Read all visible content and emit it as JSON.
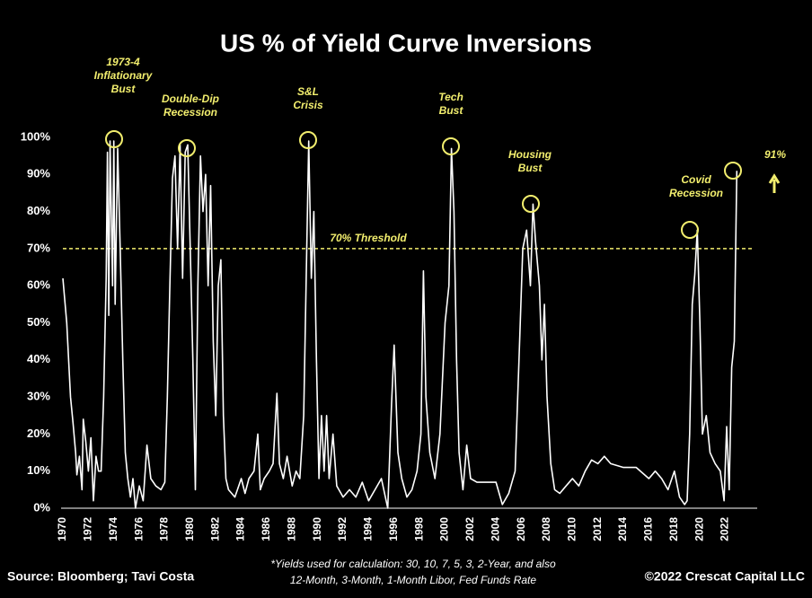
{
  "chart_data": {
    "type": "line",
    "title": "US % of Yield Curve Inversions",
    "x": [
      1970,
      1970.3,
      1970.6,
      1970.8,
      1971.0,
      1971.1,
      1971.3,
      1971.5,
      1971.6,
      1971.8,
      1972.0,
      1972.2,
      1972.4,
      1972.6,
      1972.8,
      1973.0,
      1973.2,
      1973.4,
      1973.5,
      1973.6,
      1973.7,
      1973.9,
      1974.0,
      1974.1,
      1974.3,
      1974.5,
      1974.7,
      1974.9,
      1975.1,
      1975.3,
      1975.5,
      1975.7,
      1976.0,
      1976.3,
      1976.6,
      1976.9,
      1977.3,
      1977.7,
      1978.0,
      1978.2,
      1978.4,
      1978.6,
      1978.8,
      1979.0,
      1979.2,
      1979.4,
      1979.6,
      1979.8,
      1980.0,
      1980.2,
      1980.4,
      1980.6,
      1980.8,
      1981.0,
      1981.2,
      1981.4,
      1981.6,
      1981.8,
      1982.0,
      1982.2,
      1982.4,
      1982.6,
      1982.8,
      1983.0,
      1983.5,
      1984.0,
      1984.3,
      1984.6,
      1985.0,
      1985.3,
      1985.5,
      1985.8,
      1986.2,
      1986.5,
      1986.8,
      1987.0,
      1987.3,
      1987.6,
      1988.0,
      1988.3,
      1988.6,
      1988.9,
      1989.1,
      1989.3,
      1989.5,
      1989.7,
      1989.9,
      1990.1,
      1990.3,
      1990.5,
      1990.7,
      1990.9,
      1991.2,
      1991.5,
      1992.0,
      1992.5,
      1993.0,
      1993.5,
      1994.0,
      1994.5,
      1995.0,
      1995.5,
      1995.8,
      1996.0,
      1996.3,
      1996.6,
      1997.0,
      1997.4,
      1997.8,
      1998.1,
      1998.3,
      1998.5,
      1998.8,
      1999.2,
      1999.6,
      2000.0,
      2000.3,
      2000.5,
      2000.7,
      2000.9,
      2001.1,
      2001.4,
      2001.7,
      2002.0,
      2002.5,
      2003.0,
      2003.5,
      2004.0,
      2004.5,
      2005.0,
      2005.5,
      2005.8,
      2006.1,
      2006.4,
      2006.7,
      2006.9,
      2007.1,
      2007.4,
      2007.6,
      2007.8,
      2008.0,
      2008.3,
      2008.6,
      2009.0,
      2009.5,
      2010.0,
      2010.5,
      2011.0,
      2011.5,
      2012.0,
      2012.5,
      2013.0,
      2014.0,
      2015.0,
      2016.0,
      2016.5,
      2017.0,
      2017.5,
      2018.0,
      2018.4,
      2018.8,
      2019.0,
      2019.2,
      2019.4,
      2019.6,
      2019.8,
      2020.0,
      2020.2,
      2020.5,
      2020.8,
      2021.2,
      2021.6,
      2021.9,
      2022.1,
      2022.3,
      2022.5,
      2022.7,
      2022.9
    ],
    "series": [
      {
        "name": "US % of Yield Curve Inversions",
        "color": "#ffffff",
        "values": [
          62,
          50,
          30,
          23,
          15,
          9,
          14,
          5,
          24,
          18,
          10,
          19,
          2,
          14,
          10,
          10,
          30,
          62,
          96,
          52,
          99,
          60,
          99,
          55,
          97,
          70,
          40,
          15,
          8,
          3,
          8,
          0,
          6,
          2,
          17,
          8,
          6,
          5,
          7,
          30,
          60,
          89,
          95,
          70,
          98,
          62,
          96,
          98,
          70,
          40,
          5,
          60,
          95,
          80,
          90,
          60,
          87,
          45,
          25,
          60,
          67,
          25,
          8,
          5,
          3,
          8,
          4,
          8,
          10,
          20,
          5,
          8,
          10,
          12,
          31,
          12,
          8,
          14,
          6,
          10,
          8,
          25,
          62,
          99,
          62,
          80,
          40,
          8,
          25,
          10,
          25,
          8,
          20,
          6,
          3,
          5,
          3,
          7,
          2,
          5,
          8,
          0,
          28,
          44,
          15,
          8,
          3,
          5,
          10,
          20,
          64,
          30,
          15,
          8,
          20,
          50,
          60,
          97,
          80,
          40,
          15,
          5,
          17,
          8,
          7,
          7,
          7,
          7,
          1,
          4,
          10,
          40,
          70,
          75,
          60,
          82,
          72,
          60,
          40,
          55,
          30,
          12,
          5,
          4,
          6,
          8,
          6,
          10,
          13,
          12,
          14,
          12,
          11,
          11,
          8,
          10,
          8,
          5,
          10,
          3,
          1,
          2,
          20,
          55,
          63,
          75,
          50,
          20,
          25,
          15,
          12,
          10,
          2,
          22,
          5,
          38,
          45,
          91
        ]
      }
    ],
    "xlim": [
      1970,
      2024.5
    ],
    "xticks": [
      1970,
      1972,
      1974,
      1976,
      1978,
      1980,
      1982,
      1984,
      1986,
      1988,
      1990,
      1992,
      1994,
      1996,
      1998,
      2000,
      2002,
      2004,
      2006,
      2008,
      2010,
      2012,
      2014,
      2016,
      2018,
      2020,
      2022
    ],
    "ylim": [
      0,
      100
    ],
    "yticks": [
      {
        "value": 0,
        "label": "0%"
      },
      {
        "value": 10,
        "label": "10%"
      },
      {
        "value": 20,
        "label": "20%"
      },
      {
        "value": 30,
        "label": "30%"
      },
      {
        "value": 40,
        "label": "40%"
      },
      {
        "value": 50,
        "label": "50%"
      },
      {
        "value": 60,
        "label": "60%"
      },
      {
        "value": 70,
        "label": "70%"
      },
      {
        "value": 80,
        "label": "80%"
      },
      {
        "value": 90,
        "label": "90%"
      },
      {
        "value": 100,
        "label": "100%"
      }
    ],
    "threshold": 70,
    "threshold_label": "70% Threshold",
    "annotations": [
      {
        "lines": [
          "1973-4",
          "Inflationary",
          "Bust"
        ]
      },
      {
        "lines": [
          "Double-Dip",
          "Recession"
        ]
      },
      {
        "lines": [
          "S&L",
          "Crisis"
        ]
      },
      {
        "lines": [
          "Tech",
          "Bust"
        ]
      },
      {
        "lines": [
          "Housing",
          "Bust"
        ]
      },
      {
        "lines": [
          "Covid",
          "Recession"
        ]
      },
      {
        "lines": [
          "91%"
        ]
      }
    ],
    "source": "Source: Bloomberg; Tavi Costa",
    "note": [
      "*Yields used for calculation: 30, 10, 7, 5, 3, 2-Year, and also",
      "12-Month, 3-Month, 1-Month Libor, Fed Funds Rate"
    ],
    "copyright": "©2022 Crescat Capital LLC"
  }
}
